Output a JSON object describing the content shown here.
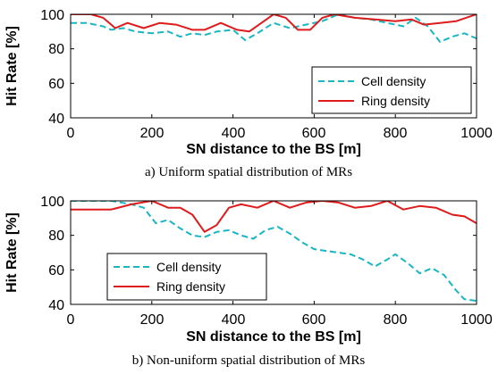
{
  "chart_data": [
    {
      "type": "line",
      "caption": "a) Uniform spatial distribution of MRs",
      "xlabel": "SN distance to the BS [m]",
      "ylabel": "Hit Rate [%]",
      "xlim": [
        0,
        1000
      ],
      "ylim": [
        40,
        100
      ],
      "xticks": [
        "0",
        "200",
        "400",
        "600",
        "800",
        "1000"
      ],
      "yticks": [
        "40",
        "60",
        "80",
        "100"
      ],
      "legend_position": "lower-right",
      "series": [
        {
          "name": "Cell density",
          "color": "#17b7c4",
          "style": "dashed",
          "x": [
            0,
            40,
            80,
            100,
            130,
            160,
            200,
            240,
            270,
            300,
            330,
            360,
            400,
            430,
            460,
            500,
            540,
            580,
            620,
            660,
            700,
            740,
            780,
            820,
            850,
            880,
            910,
            940,
            970,
            1000
          ],
          "y": [
            95,
            95,
            93,
            91,
            92,
            90,
            89,
            90,
            87,
            89,
            88,
            90,
            91,
            85,
            89,
            95,
            92,
            94,
            96,
            100,
            98,
            97,
            95,
            93,
            98,
            93,
            84,
            87,
            89,
            86
          ]
        },
        {
          "name": "Ring density",
          "color": "#e01b1b",
          "style": "solid",
          "x": [
            0,
            50,
            80,
            110,
            140,
            180,
            220,
            260,
            300,
            330,
            370,
            410,
            440,
            470,
            500,
            530,
            560,
            590,
            620,
            650,
            700,
            750,
            800,
            840,
            870,
            910,
            950,
            1000
          ],
          "y": [
            100,
            100,
            98,
            92,
            95,
            92,
            95,
            94,
            91,
            91,
            95,
            91,
            90,
            95,
            100,
            98,
            91,
            91,
            98,
            100,
            98,
            97,
            96,
            97,
            94,
            95,
            96,
            100
          ]
        }
      ]
    },
    {
      "type": "line",
      "caption": "b) Non-uniform spatial distribution of MRs",
      "xlabel": "SN distance to the BS [m]",
      "ylabel": "Hit Rate [%]",
      "xlim": [
        0,
        1000
      ],
      "ylim": [
        40,
        100
      ],
      "xticks": [
        "0",
        "200",
        "400",
        "600",
        "800",
        "1000"
      ],
      "yticks": [
        "40",
        "60",
        "80",
        "100"
      ],
      "legend_position": "lower-left",
      "series": [
        {
          "name": "Cell density",
          "color": "#17b7c4",
          "style": "dashed",
          "x": [
            0,
            50,
            100,
            150,
            180,
            210,
            240,
            270,
            300,
            330,
            360,
            390,
            420,
            450,
            480,
            510,
            540,
            570,
            600,
            630,
            660,
            690,
            720,
            750,
            780,
            800,
            830,
            860,
            890,
            920,
            950,
            970,
            1000
          ],
          "y": [
            100,
            100,
            100,
            98,
            96,
            87,
            89,
            84,
            80,
            79,
            82,
            83,
            80,
            78,
            83,
            85,
            81,
            76,
            72,
            71,
            70,
            69,
            66,
            62,
            66,
            69,
            64,
            58,
            61,
            57,
            48,
            43,
            42
          ]
        },
        {
          "name": "Ring density",
          "color": "#e01b1b",
          "style": "solid",
          "x": [
            0,
            50,
            100,
            150,
            200,
            240,
            270,
            300,
            330,
            360,
            390,
            420,
            460,
            500,
            540,
            580,
            620,
            660,
            700,
            740,
            780,
            820,
            860,
            900,
            940,
            970,
            1000
          ],
          "y": [
            95,
            95,
            95,
            98,
            100,
            96,
            96,
            92,
            82,
            86,
            96,
            98,
            96,
            100,
            96,
            99,
            100,
            99,
            96,
            97,
            100,
            95,
            97,
            96,
            92,
            91,
            87
          ]
        }
      ]
    }
  ]
}
